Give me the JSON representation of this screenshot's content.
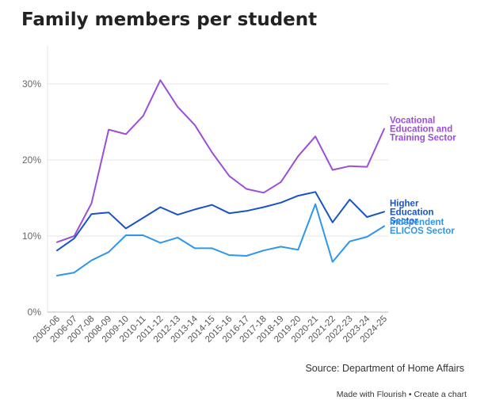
{
  "title": "Family members per student",
  "source": "Source: Department of Home Affairs",
  "footer": {
    "made_with": "Made with Flourish",
    "separator": "•",
    "create_link": "Create a chart"
  },
  "chart_data": {
    "type": "line",
    "title": "Family members per student",
    "xlabel": "",
    "ylabel": "",
    "ylim": [
      0,
      0.35
    ],
    "yticks": [
      0,
      0.1,
      0.2,
      0.3
    ],
    "ytick_labels": [
      "0%",
      "10%",
      "20%",
      "30%"
    ],
    "grid": true,
    "legend": "inline labels at line ends (right)",
    "x": [
      "2005-06",
      "2006-07",
      "2007-08",
      "2008-09",
      "2009-10",
      "2010-11",
      "2011-12",
      "2012-13",
      "2013-14",
      "2014-15",
      "2015-16",
      "2016-17",
      "2017-18",
      "2018-19",
      "2019-20",
      "2020-21",
      "2021-22",
      "2022-23",
      "2023-24",
      "2024-25"
    ],
    "series": [
      {
        "name": "Vocational Education and Training Sector",
        "label_lines": [
          "Vocational",
          "Education and",
          "Training Sector"
        ],
        "color": "#9b4fd6",
        "values": [
          0.092,
          0.1,
          0.143,
          0.24,
          0.234,
          0.258,
          0.305,
          0.27,
          0.246,
          0.21,
          0.179,
          0.162,
          0.157,
          0.171,
          0.205,
          0.231,
          0.187,
          0.192,
          0.191,
          0.241
        ]
      },
      {
        "name": "Higher Education Sector",
        "label_lines": [
          "Higher",
          "Education",
          "Sector"
        ],
        "color": "#1a53c4",
        "values": [
          0.081,
          0.097,
          0.129,
          0.131,
          0.11,
          0.124,
          0.138,
          0.128,
          0.135,
          0.141,
          0.13,
          0.133,
          0.138,
          0.144,
          0.153,
          0.158,
          0.118,
          0.148,
          0.125,
          0.132
        ]
      },
      {
        "name": "Independent ELICOS Sector",
        "label_lines": [
          "Independent",
          "ELICOS Sector"
        ],
        "color": "#2f96ea",
        "values": [
          0.048,
          0.052,
          0.068,
          0.079,
          0.101,
          0.101,
          0.091,
          0.098,
          0.084,
          0.084,
          0.075,
          0.074,
          0.081,
          0.086,
          0.082,
          0.142,
          0.066,
          0.093,
          0.099,
          0.113
        ]
      }
    ]
  }
}
